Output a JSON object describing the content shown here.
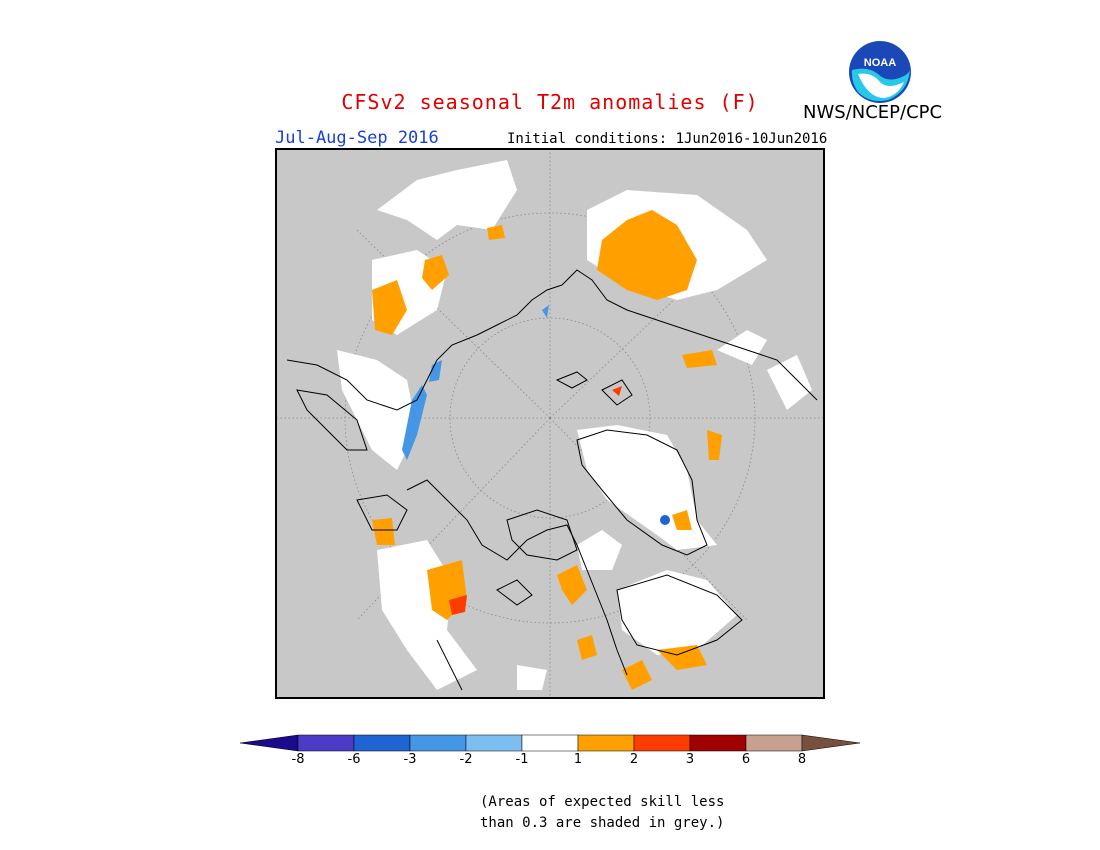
{
  "header": {
    "title": "CFSv2 seasonal T2m anomalies (F)",
    "season": "Jul-Aug-Sep 2016",
    "initial_conditions": "Initial conditions: 1Jun2016-10Jun2016",
    "agency": "NWS/NCEP/CPC",
    "logo_text": "NOAA"
  },
  "map": {
    "projection": "north polar stereographic",
    "grey_meaning": "expected skill < 0.3"
  },
  "legend": {
    "ticks": [
      "-8",
      "-6",
      "-3",
      "-2",
      "-1",
      "1",
      "2",
      "3",
      "6",
      "8"
    ],
    "colors": {
      "below_min": "#1a0a8c",
      "m8_m6": "#4b3cc8",
      "m6_m3": "#1e64d2",
      "m3_m2": "#4696e6",
      "m2_m1": "#7dbef0",
      "m1_1": "#ffffff",
      "1_2": "#ffa000",
      "2_3": "#ff3c00",
      "3_6": "#a00000",
      "6_8": "#c8a090",
      "above_max": "#785040"
    },
    "note_line1": "(Areas of expected skill less",
    "note_line2": "than 0.3 are shaded in grey.)"
  }
}
